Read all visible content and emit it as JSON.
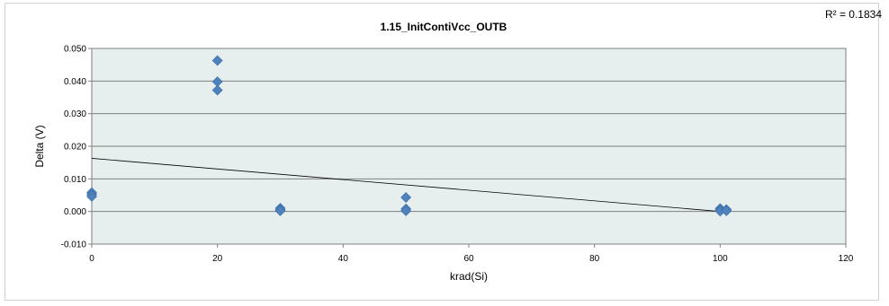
{
  "chart_data": {
    "type": "scatter",
    "title": "1.15_InitContiVcc_OUTB",
    "xlabel": "krad(Si)",
    "ylabel": "Delta (V)",
    "xlim": [
      0,
      120
    ],
    "ylim": [
      -0.01,
      0.05
    ],
    "x_ticks": [
      "0",
      "20",
      "40",
      "60",
      "80",
      "100",
      "120"
    ],
    "y_ticks": [
      "-0.010",
      "0.000",
      "0.010",
      "0.020",
      "0.030",
      "0.040",
      "0.050"
    ],
    "grid": "horizontal",
    "background_color": "#e6efee",
    "marker_color": "#4f81bd",
    "r_squared_label": "R² = 0.1834",
    "series": [
      {
        "x": [
          0,
          0,
          0,
          20,
          20,
          20,
          30,
          30,
          30,
          50,
          50,
          50,
          100,
          100,
          100,
          101,
          101
        ],
        "y": [
          0.0058,
          0.0052,
          0.0046,
          0.0463,
          0.0398,
          0.0372,
          0.001,
          0.0005,
          0.0002,
          0.0043,
          0.0008,
          0.0002,
          0.0009,
          0.0004,
          0.0001,
          0.0006,
          0.0002
        ]
      }
    ],
    "trendline": {
      "type": "linear",
      "x": [
        0,
        100
      ],
      "y": [
        0.0163,
        0.0
      ]
    }
  }
}
